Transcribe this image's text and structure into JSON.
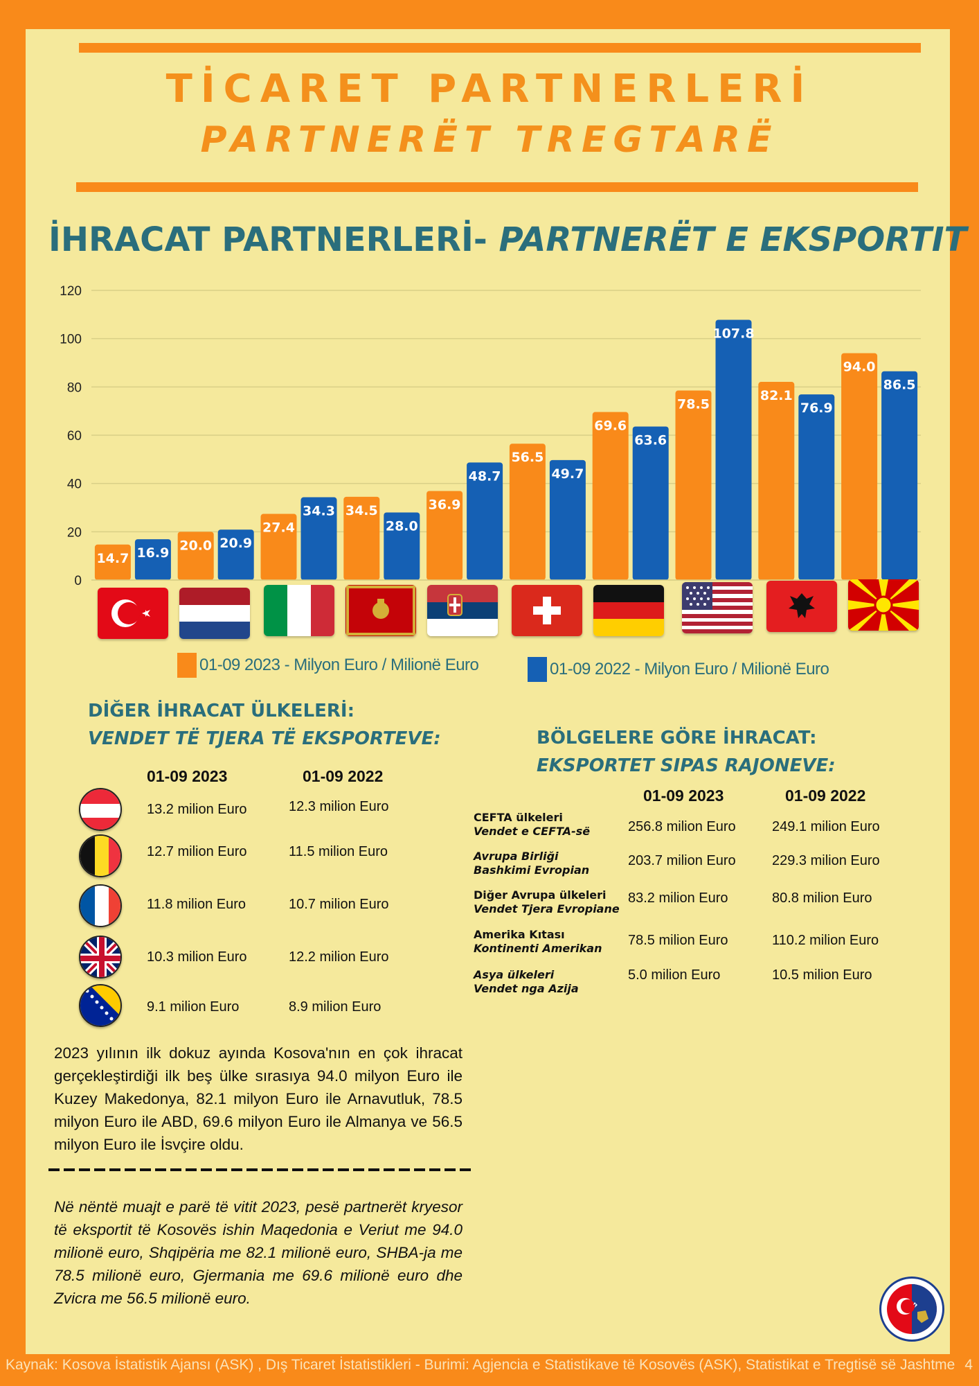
{
  "header": {
    "title_tr": "TİCARET PARTNERLERİ",
    "title_sq": "PARTNERËT TREGTARË"
  },
  "section": {
    "title_tr": "İHRACAT PARTNERLERİ- ",
    "title_sq": "PARTNERËT E EKSPORTIT"
  },
  "colors": {
    "background": "#f98a1a",
    "panel": "#f5e99c",
    "series_2023": "#f98a1a",
    "series_2022": "#1560b4",
    "heading": "#2a6e7c"
  },
  "chart_data": {
    "type": "bar",
    "categories": [
      "Turkey",
      "Netherlands",
      "Italy",
      "Montenegro",
      "Serbia",
      "Switzerland",
      "Germany",
      "USA",
      "Albania",
      "North Macedonia"
    ],
    "category_display": "flag icons",
    "series": [
      {
        "name": "01-09 2023 - Milyon Euro / Milionë Euro",
        "color": "#f98a1a",
        "values": [
          14.7,
          20.0,
          27.4,
          34.5,
          36.9,
          56.5,
          69.6,
          78.5,
          82.1,
          94.0
        ]
      },
      {
        "name": "01-09 2022 - Milyon Euro / Milionë Euro",
        "color": "#1560b4",
        "values": [
          16.9,
          20.9,
          34.3,
          28.0,
          48.7,
          49.7,
          63.6,
          107.8,
          76.9,
          86.5
        ]
      }
    ],
    "y_ticks": [
      0,
      20,
      40,
      60,
      80,
      100,
      120
    ],
    "ylim": [
      0,
      120
    ],
    "grid": true,
    "legend": "bottom"
  },
  "legend": {
    "label_2023": "01-09 2023 - Milyon Euro / Milionë Euro",
    "label_2022": "01-09 2022 - Milyon Euro / Milionë Euro"
  },
  "other_countries": {
    "title_tr": "DİĞER İHRACAT ÜLKELERİ:",
    "title_sq": "VENDET TË TJERA TË EKSPORTEVE:",
    "col_2023": "01-09 2023",
    "col_2022": "01-09 2022",
    "rows": [
      {
        "flag": "austria-flag",
        "v2023": "13.2 milion Euro",
        "v2022": "12.3 milion Euro"
      },
      {
        "flag": "belgium-flag",
        "v2023": "12.7 milion Euro",
        "v2022": "11.5 milion Euro"
      },
      {
        "flag": "france-flag",
        "v2023": "11.8 milion Euro",
        "v2022": "10.7 milion Euro"
      },
      {
        "flag": "uk-flag",
        "v2023": "10.3 milion Euro",
        "v2022": "12.2 milion Euro"
      },
      {
        "flag": "bosnia-flag",
        "v2023": "9.1 milion Euro",
        "v2022": "8.9 milion Euro"
      }
    ]
  },
  "regions": {
    "title_tr": "BÖLGELERE GÖRE İHRACAT:",
    "title_sq": "EKSPORTET SIPAS RAJONEVE:",
    "col_2023": "01-09 2023",
    "col_2022": "01-09 2022",
    "rows": [
      {
        "name_tr": "CEFTA ülkeleri",
        "name_sq": "Vendet e CEFTA-së",
        "v2023": "256.8 milion Euro",
        "v2022": "249.1 milion Euro"
      },
      {
        "name_tr": "Avrupa Birliği",
        "name_sq": "Bashkimi Evropian",
        "v2023": "203.7 milion Euro",
        "v2022": "229.3 milion Euro"
      },
      {
        "name_tr": "Diğer Avrupa ülkeleri",
        "name_sq": "Vendet Tjera Evropiane",
        "v2023": "83.2 milion Euro",
        "v2022": "80.8 milion Euro"
      },
      {
        "name_tr": "Amerika Kıtası",
        "name_sq": "Kontinenti Amerikan",
        "v2023": "78.5 milion Euro",
        "v2022": "110.2 milion Euro"
      },
      {
        "name_tr": "Asya ülkeleri",
        "name_sq": "Vendet nga Azija",
        "v2023": "5.0 milion Euro",
        "v2022": "10.5 milion Euro"
      }
    ]
  },
  "summary": {
    "tr": "2023 yılının ilk dokuz ayında Kosova'nın en çok ihracat gerçekleştirdiği ilk beş ülke sırasıya 94.0 milyon Euro ile Kuzey Makedonya, 82.1 milyon Euro ile Arnavutluk, 78.5 milyon Euro ile ABD, 69.6 milyon Euro ile Almanya ve 56.5 milyon Euro ile İsvçire oldu.",
    "sq": "Në nëntë muajt e parë të vitit 2023, pesë partnerët kryesor të eksportit të Kosovës ishin Maqedonia e Veriut me 94.0 milionë euro, Shqipëria me 82.1 milionë euro, SHBA-ja me 78.5 milionë euro, Gjermania me 69.6 milionë euro dhe Zvicra me 56.5 milionë euro."
  },
  "footer": {
    "source": "Kaynak: Kosova İstatistik Ajansı (ASK) , Dış Ticaret İstatistikleri - Burimi: Agjencia e Statistikave të Kosovës (ASK), Statistikat e Tregtisë së Jashtme",
    "page": "4"
  }
}
